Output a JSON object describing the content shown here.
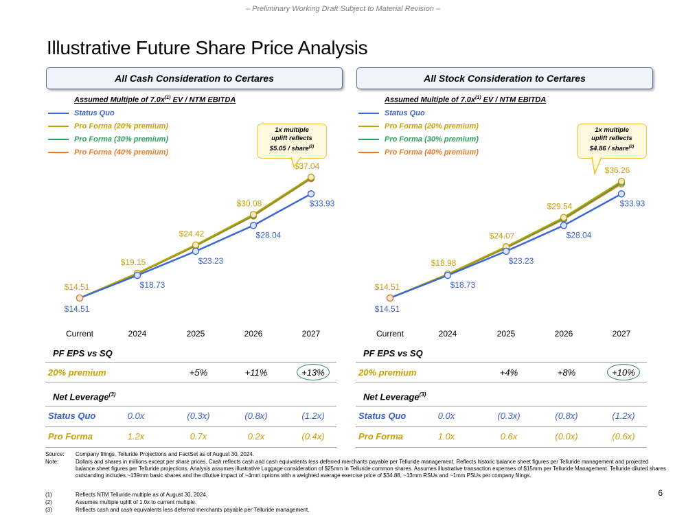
{
  "draft_note": "– Preliminary Working Draft Subject to Material Revision –",
  "title": "Illustrative Future Share Price Analysis",
  "colors": {
    "status_quo": "#3a66d6",
    "pf20": "#b9a300",
    "pf30": "#2e9e5b",
    "pf40": "#ea7a2a",
    "gold_label": "#c9a000",
    "blue_label": "#3a5fcd"
  },
  "panels": [
    {
      "header": "All Cash Consideration to Certares",
      "assumed": "Assumed Multiple of 7.0x",
      "assumed_sup": "(1)",
      "assumed_suffix": " EV / NTM EBITDA",
      "legend": [
        "Status Quo",
        "Pro Forma (20% premium)",
        "Pro Forma (30% premium)",
        "Pro Forma (40% premium)"
      ],
      "callout_line1": "1x multiple",
      "callout_line2": "uplift reflects",
      "callout_line3": "$5.05 / share",
      "callout_sup": "(2)",
      "pf_eps_title": "PF EPS vs SQ",
      "pf_eps_row_label": "20% premium",
      "pf_eps_values": [
        "+5%",
        "+11%",
        "+13%"
      ],
      "net_leverage_title": "Net Leverage",
      "net_leverage_sup": "(3)",
      "lev_rows": [
        {
          "label": "Status Quo",
          "values": [
            "0.0x",
            "(0.3x)",
            "(0.8x)",
            "(1.2x)"
          ]
        },
        {
          "label": "Pro Forma",
          "values": [
            "1.2x",
            "0.7x",
            "0.2x",
            "(0.4x)"
          ]
        }
      ]
    },
    {
      "header": "All Stock Consideration to Certares",
      "assumed": "Assumed Multiple of 7.0x",
      "assumed_sup": "(1)",
      "assumed_suffix": " EV / NTM EBITDA",
      "legend": [
        "Status Quo",
        "Pro Forma (20% premium)",
        "Pro Forma (30% premium)",
        "Pro Forma (40% premium)"
      ],
      "callout_line1": "1x multiple",
      "callout_line2": "uplift reflects",
      "callout_line3": "$4.86 / share",
      "callout_sup": "(2)",
      "pf_eps_title": "PF EPS vs SQ",
      "pf_eps_row_label": "20% premium",
      "pf_eps_values": [
        "+4%",
        "+8%",
        "+10%"
      ],
      "net_leverage_title": "Net Leverage",
      "net_leverage_sup": "(3)",
      "lev_rows": [
        {
          "label": "Status Quo",
          "values": [
            "0.0x",
            "(0.3x)",
            "(0.8x)",
            "(1.2x)"
          ]
        },
        {
          "label": "Pro Forma",
          "values": [
            "1.0x",
            "0.6x",
            "(0.0x)",
            "(0.6x)"
          ]
        }
      ]
    }
  ],
  "chart_data": [
    {
      "type": "line",
      "title": "All Cash Consideration to Certares",
      "categories": [
        "Current",
        "2024",
        "2025",
        "2026",
        "2027"
      ],
      "ylim": [
        10,
        42
      ],
      "series": [
        {
          "name": "Status Quo",
          "values": [
            14.51,
            18.73,
            23.23,
            28.04,
            33.93
          ]
        },
        {
          "name": "Pro Forma (20% premium)",
          "values": [
            14.51,
            19.15,
            24.42,
            30.08,
            37.04
          ]
        },
        {
          "name": "Pro Forma (30% premium)",
          "values": [
            14.51,
            19.08,
            24.3,
            29.93,
            36.9
          ]
        },
        {
          "name": "Pro Forma (40% premium)",
          "values": [
            14.51,
            19.02,
            24.2,
            29.8,
            36.75
          ]
        }
      ],
      "data_labels": {
        "status_quo": [
          "$14.51",
          "$18.73",
          "$23.23",
          "$28.04",
          "$33.93"
        ],
        "pro_forma": [
          "$14.51",
          "$19.15",
          "$24.42",
          "$30.08",
          "$37.04"
        ]
      }
    },
    {
      "type": "line",
      "title": "All Stock Consideration to Certares",
      "categories": [
        "Current",
        "2024",
        "2025",
        "2026",
        "2027"
      ],
      "ylim": [
        10,
        42
      ],
      "series": [
        {
          "name": "Status Quo",
          "values": [
            14.51,
            18.73,
            23.23,
            28.04,
            33.93
          ]
        },
        {
          "name": "Pro Forma (20% premium)",
          "values": [
            14.51,
            18.98,
            24.07,
            29.54,
            36.26
          ]
        },
        {
          "name": "Pro Forma (30% premium)",
          "values": [
            14.51,
            18.93,
            23.95,
            29.35,
            36.05
          ]
        },
        {
          "name": "Pro Forma (40% premium)",
          "values": [
            14.51,
            18.88,
            23.83,
            29.18,
            35.8
          ]
        }
      ],
      "data_labels": {
        "status_quo": [
          "$14.51",
          "$18.73",
          "$23.23",
          "$28.04",
          "$33.93"
        ],
        "pro_forma": [
          "$14.51",
          "$18.98",
          "$24.07",
          "$29.54",
          "$36.26"
        ]
      }
    }
  ],
  "footnotes": [
    {
      "k": "Source:",
      "v": "Company filings, Telluride Projections and FactSet as of August 30, 2024."
    },
    {
      "k": "Note:",
      "v": "Dollars and shares in millions except per share prices. Cash reflects cash and cash equivalents less deferred merchants payable per Telluride management. Reflects historic balance sheet figures per Telluride management and projected balance sheet figures per Telluride projections. Analysis assumes illustrative Luggage consideration of $25mm in Telluride common shares. Assumes illustrative transaction expenses of $15mm per Telluride Management. Telluride diluted shares outstanding includes ~139mm basic shares and the dilutive impact of ~4mm options with a weighted average exercise price of $34.88, ~13mm RSUs and ~1mm PSUs per company filings."
    },
    {
      "k": "(1)",
      "v": "Reflects NTM Telluride multiple as of August 30, 2024."
    },
    {
      "k": "(2)",
      "v": "Assumes multiple uplift of 1.0x to current multiple."
    },
    {
      "k": "(3)",
      "v": "Reflects cash and cash equivalents less deferred merchants payable per Telluride management."
    }
  ],
  "page_number": "6"
}
